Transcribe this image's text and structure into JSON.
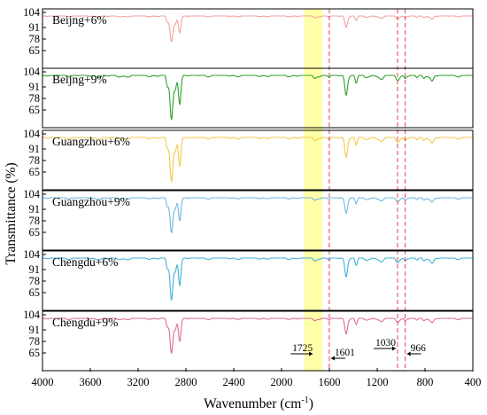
{
  "chart_data": {
    "type": "line",
    "xlabel_main": "Wavenumber (cm",
    "xlabel_sup": "-1",
    "xlabel_tail": ")",
    "ylabel": "Transmittance (%)",
    "xlim": [
      4000,
      400
    ],
    "x_ticks": [
      "4000",
      "3600",
      "3200",
      "2800",
      "2400",
      "2000",
      "1600",
      "1200",
      "800",
      "400"
    ],
    "y_ticks": [
      "104",
      "91",
      "78",
      "65"
    ],
    "highlight_band": [
      1810,
      1660
    ],
    "highlight_color": "#ffff99",
    "marker_lines": [
      1601,
      1030,
      966
    ],
    "marker_color": "#e8434f",
    "annotations": [
      {
        "text": "1725",
        "x": 1725,
        "arrow": "right"
      },
      {
        "text": "1601",
        "x": 1601,
        "arrow": "left"
      },
      {
        "text": "1030",
        "x": 1030,
        "arrow": "right"
      },
      {
        "text": "966",
        "x": 966,
        "arrow": "left"
      }
    ],
    "series": [
      {
        "name": "Beijng+6%",
        "color": "#f4a0a0",
        "depth": 0.55
      },
      {
        "name": "Beijng+9%",
        "color": "#2ca02c",
        "depth": 0.95
      },
      {
        "name": "Guangzhou+6%",
        "color": "#f2c94c",
        "depth": 0.95
      },
      {
        "name": "Guangzhou+9%",
        "color": "#6fb7e0",
        "depth": 0.75
      },
      {
        "name": "Chengdu+6%",
        "color": "#3fb2d6",
        "depth": 0.9
      },
      {
        "name": "Chengdu+9%",
        "color": "#e06a9b",
        "depth": 0.75
      }
    ]
  }
}
